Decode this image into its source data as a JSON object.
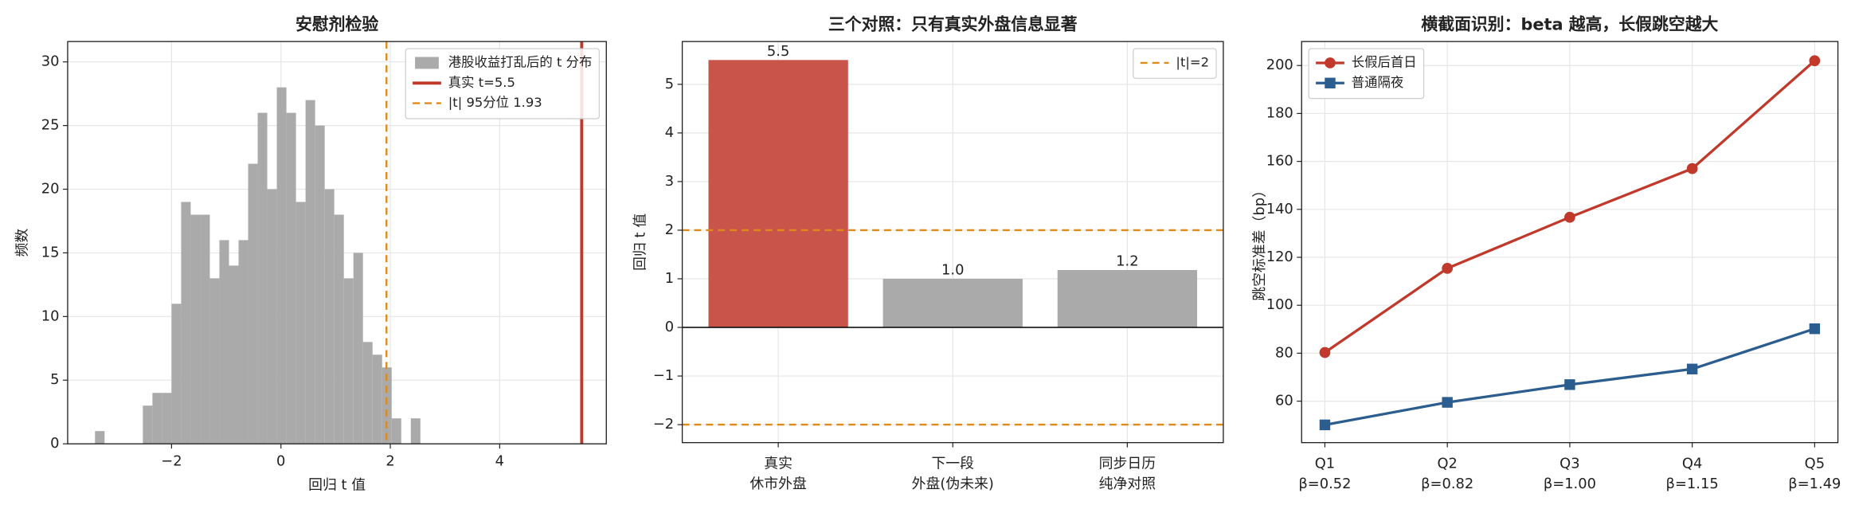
{
  "chart_data": [
    {
      "type": "histogram",
      "title": "安慰剂检验",
      "xlabel": "回归 t 值",
      "ylabel": "频数",
      "name": "港股收益打乱后的 t 分布",
      "color": "#aaaaaa",
      "bins": [
        -3.4,
        -3.225,
        -3.05,
        -2.875,
        -2.7,
        -2.525,
        -2.35,
        -2.175,
        -2.0,
        -1.825,
        -1.65,
        -1.475,
        -1.3,
        -1.125,
        -0.95,
        -0.775,
        -0.6,
        -0.425,
        -0.25,
        -0.075,
        0.1,
        0.275,
        0.45,
        0.625,
        0.8,
        0.975,
        1.15,
        1.325,
        1.5,
        1.675,
        1.85,
        2.025,
        2.2,
        2.375,
        2.55
      ],
      "counts": [
        1,
        0,
        0,
        0,
        0,
        3,
        4,
        4,
        11,
        19,
        18,
        18,
        13,
        16,
        14,
        16,
        22,
        26,
        20,
        28,
        26,
        19,
        27,
        25,
        20,
        18,
        13,
        15,
        8,
        7,
        6,
        2,
        0,
        2
      ],
      "vlines": [
        {
          "name": "真实 t=5.5",
          "x": 5.5,
          "color": "#c0392b",
          "style": "solid"
        },
        {
          "name": "|t| 95分位 1.93",
          "x": 1.93,
          "color": "#e08a1a",
          "style": "dashed"
        }
      ],
      "xlim": [
        -3.9,
        5.95
      ],
      "xticks": [
        {
          "value": -2,
          "label": "−2"
        },
        0,
        2,
        4
      ],
      "ylim": [
        0,
        31.6
      ],
      "yticks": [
        0,
        5,
        10,
        15,
        20,
        25,
        30
      ],
      "grid": true,
      "legend": "upper right"
    },
    {
      "type": "bar",
      "title": "三个对照：只有真实外盘信息显著",
      "ylabel": "回归 t 值",
      "categories": [
        [
          "真实",
          "休市外盘"
        ],
        [
          "下一段",
          "外盘(伪未来)"
        ],
        [
          "同步日历",
          "纯净对照"
        ]
      ],
      "values": [
        5.5,
        1.0,
        1.18
      ],
      "value_labels": [
        "5.5",
        "1.0",
        "1.2"
      ],
      "colors": [
        "#c9544a",
        "#aaaaaa",
        "#aaaaaa"
      ],
      "hlines": [
        {
          "name": "|t|=2",
          "y": 2,
          "color": "#e08a1a",
          "style": "dashed"
        },
        {
          "y": -2,
          "color": "#e08a1a",
          "style": "dashed"
        }
      ],
      "ylim": [
        -2.37,
        5.88
      ],
      "yticks": [
        {
          "value": -2,
          "label": "−2"
        },
        {
          "value": -1,
          "label": "−1"
        },
        0,
        1,
        2,
        3,
        4,
        5
      ],
      "grid": true,
      "legend": "upper right"
    },
    {
      "type": "line",
      "title": "横截面识别：beta 越高，长假跳空越大",
      "ylabel": "跳空标准差（bp）",
      "categories": [
        [
          "Q1",
          "β=0.52"
        ],
        [
          "Q2",
          "β=0.82"
        ],
        [
          "Q3",
          "β=1.00"
        ],
        [
          "Q4",
          "β=1.15"
        ],
        [
          "Q5",
          "β=1.49"
        ]
      ],
      "series": [
        {
          "name": "长假后首日",
          "color": "#c0392b",
          "marker": "circle",
          "values": [
            80.3,
            115.4,
            136.7,
            157,
            202
          ]
        },
        {
          "name": "普通隔夜",
          "color": "#2c5d8f",
          "marker": "square",
          "values": [
            50.1,
            59.5,
            66.9,
            73.4,
            90.2
          ]
        }
      ],
      "ylim": [
        42.7,
        210
      ],
      "yticks": [
        60,
        80,
        100,
        120,
        140,
        160,
        180,
        200
      ],
      "grid": true,
      "legend": "upper left"
    }
  ]
}
